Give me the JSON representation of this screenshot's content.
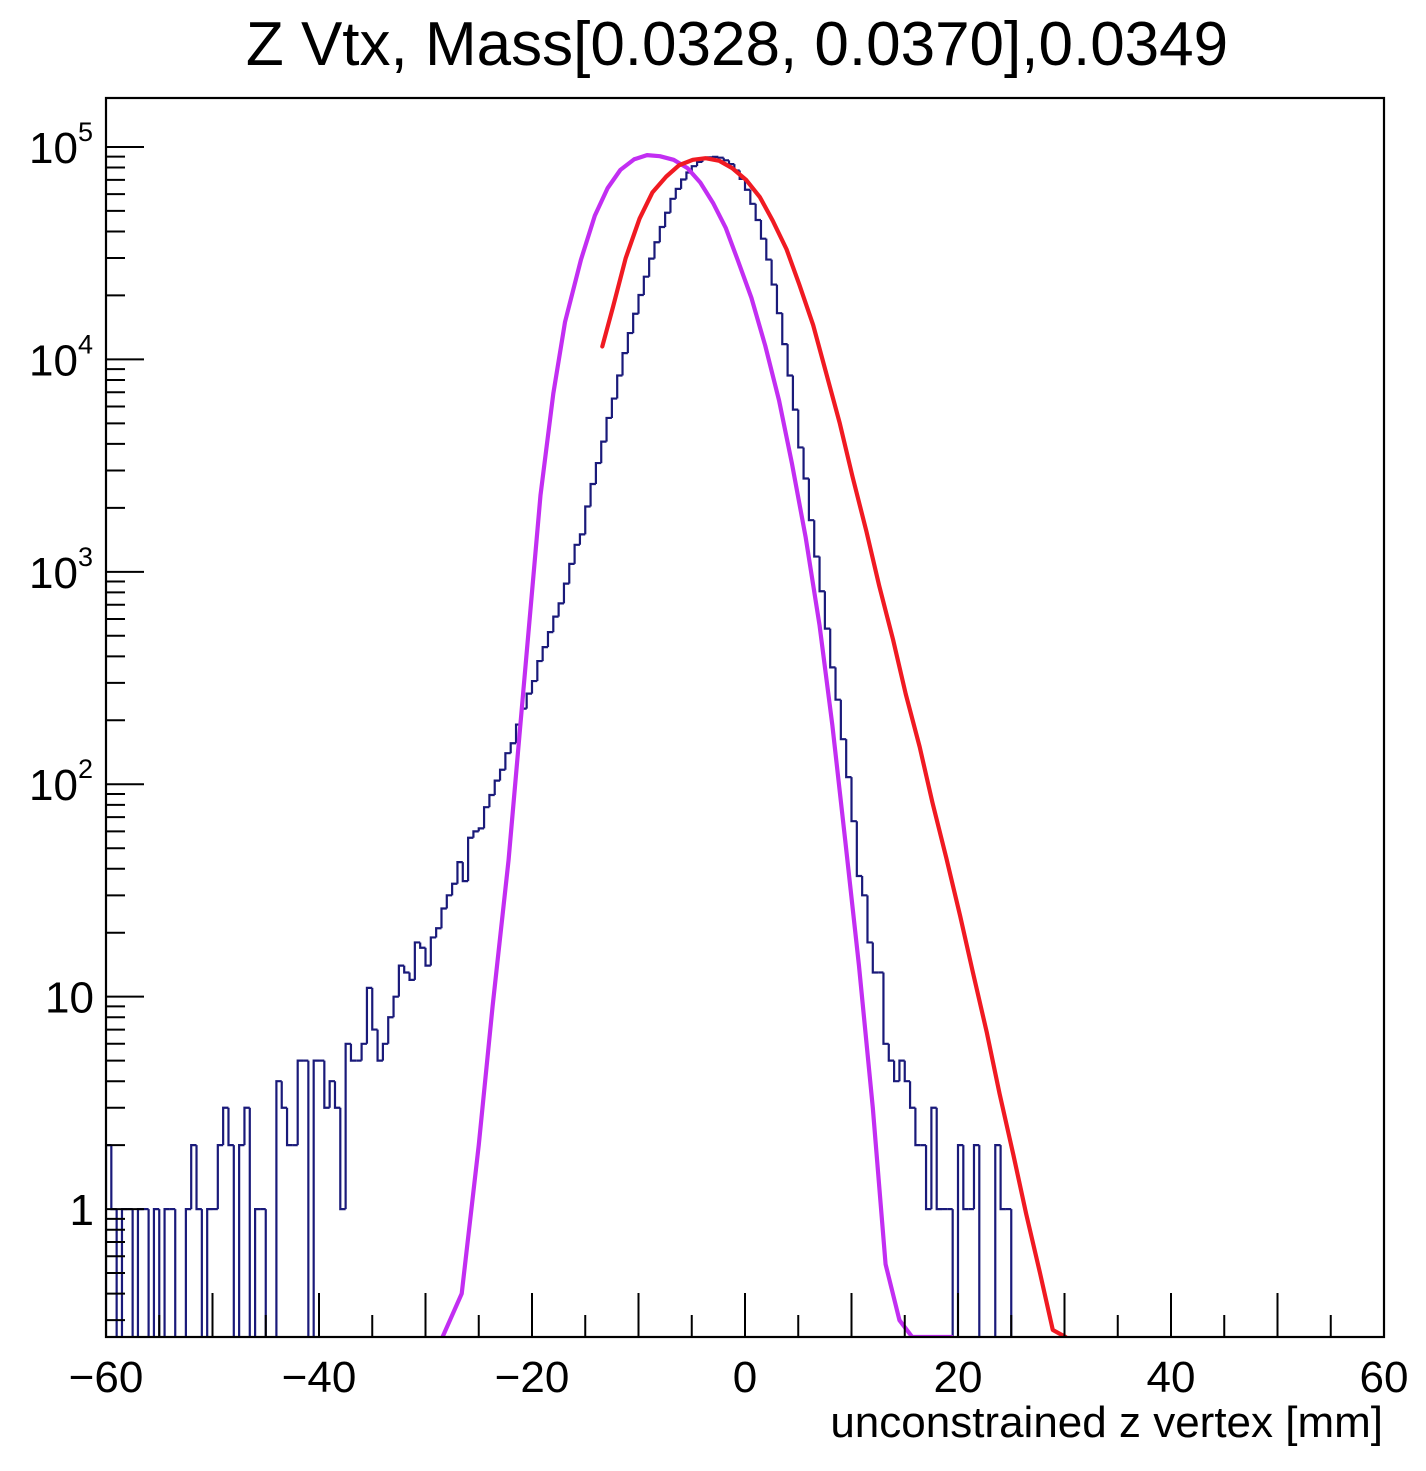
{
  "chart_data": {
    "type": "histogram",
    "title": "Z Vtx, Mass[0.0328, 0.0370],0.0349",
    "xlabel": "unconstrained z vertex [mm]",
    "ylabel": "",
    "xlim": [
      -60,
      60
    ],
    "ylim": [
      0.25,
      170000
    ],
    "yscale": "log",
    "grid": false,
    "legend": "none",
    "x_ticks": [
      {
        "value": -60,
        "label": "−60"
      },
      {
        "value": -40,
        "label": "−40"
      },
      {
        "value": -20,
        "label": "−20"
      },
      {
        "value": 0,
        "label": "0"
      },
      {
        "value": 20,
        "label": "20"
      },
      {
        "value": 40,
        "label": "40"
      },
      {
        "value": 60,
        "label": "60"
      }
    ],
    "y_ticks": [
      {
        "value": 1,
        "base": "1",
        "exp": ""
      },
      {
        "value": 10,
        "base": "10",
        "exp": ""
      },
      {
        "value": 100,
        "base": "10",
        "exp": "2"
      },
      {
        "value": 1000,
        "base": "10",
        "exp": "3"
      },
      {
        "value": 10000,
        "base": "10",
        "exp": "4"
      },
      {
        "value": 100000,
        "base": "10",
        "exp": "5"
      }
    ],
    "histogram": {
      "color": "#1a1a7a",
      "bin_edges_start": -60,
      "bin_width": 0.5,
      "counts": [
        2,
        1,
        0,
        1,
        1,
        0,
        1,
        1,
        0,
        1,
        0,
        1,
        1,
        0,
        0,
        1,
        2,
        1,
        0,
        1,
        1,
        2,
        3,
        2,
        0,
        2,
        3,
        0,
        1,
        1,
        0,
        0,
        4,
        3,
        2,
        2,
        5,
        5,
        0,
        5,
        5,
        3,
        4,
        3,
        1,
        6,
        5,
        5,
        6,
        11,
        7,
        5,
        6,
        8,
        10,
        14,
        13,
        12,
        18,
        17,
        14,
        19,
        21,
        26,
        30,
        34,
        43,
        35,
        56,
        60,
        62,
        78,
        89,
        104,
        117,
        140,
        156,
        191,
        227,
        267,
        306,
        380,
        442,
        520,
        615,
        710,
        880,
        1090,
        1340,
        1500,
        2030,
        2590,
        3250,
        4100,
        5300,
        6540,
        8400,
        10700,
        13300,
        16400,
        20100,
        24500,
        29800,
        35600,
        42000,
        49000,
        57000,
        63500,
        70300,
        75800,
        81200,
        85000,
        88000,
        89300,
        89800,
        89000,
        86500,
        83000,
        77500,
        70700,
        62900,
        54000,
        45300,
        37000,
        29500,
        22500,
        16500,
        11800,
        8400,
        5800,
        3850,
        2750,
        1750,
        1180,
        810,
        540,
        355,
        250,
        163,
        108,
        67,
        37,
        30,
        18,
        13,
        13,
        6,
        5,
        4,
        5,
        4,
        3,
        2,
        2,
        1,
        3,
        1,
        1,
        1,
        0,
        2,
        1,
        1,
        2,
        0,
        0,
        0,
        2,
        1,
        1,
        0,
        0,
        0,
        0,
        0,
        0,
        0,
        0,
        0,
        0,
        0,
        0,
        0,
        0,
        0,
        0,
        0,
        0,
        0,
        0,
        0,
        0,
        0,
        0,
        0,
        0,
        0,
        0,
        0,
        0,
        0,
        0,
        0,
        0,
        0,
        0,
        0,
        0,
        0,
        0,
        0,
        0,
        0,
        0,
        0,
        0,
        0,
        0,
        0,
        0,
        0,
        0,
        0
      ]
    },
    "series": [
      {
        "color": "#c22ef2",
        "x": [
          -28.4,
          -26.6,
          -25.0,
          -23.7,
          -22.2,
          -20.8,
          -19.2,
          -18.0,
          -16.9,
          -15.4,
          -14.1,
          -12.9,
          -11.7,
          -10.4,
          -9.2,
          -8.0,
          -6.7,
          -5.4,
          -4.2,
          -3.0,
          -1.8,
          -0.7,
          0.6,
          1.9,
          3.2,
          4.4,
          5.7,
          7.0,
          8.2,
          9.4,
          10.7,
          12.0,
          13.2,
          14.5,
          15.7,
          17.0,
          18.3,
          19.4
        ],
        "y": [
          0.25,
          0.4,
          2.0,
          9.0,
          44,
          280,
          2300,
          6900,
          15000,
          29500,
          47500,
          64000,
          78000,
          87500,
          91500,
          90500,
          87000,
          79500,
          68000,
          54500,
          41500,
          29500,
          19500,
          11600,
          6400,
          3250,
          1450,
          560,
          190,
          55,
          14,
          3.0,
          0.55,
          0.3,
          0.25,
          0.25,
          0.25,
          0.25
        ]
      },
      {
        "color": "#f01a22",
        "x": [
          -13.4,
          -12.4,
          -11.2,
          -9.9,
          -8.7,
          -7.4,
          -6.2,
          -4.9,
          -3.7,
          -2.4,
          -1.2,
          0.1,
          1.4,
          2.6,
          3.9,
          5.1,
          6.4,
          7.6,
          8.9,
          10.1,
          11.4,
          12.6,
          13.9,
          15.1,
          16.4,
          17.6,
          18.9,
          20.2,
          21.4,
          22.7,
          23.9,
          25.2,
          26.4,
          27.7,
          28.9,
          30.1
        ],
        "y": [
          11500,
          17600,
          30000,
          46000,
          61000,
          72500,
          82000,
          87000,
          88500,
          86000,
          79500,
          70000,
          58000,
          45000,
          33000,
          22500,
          14500,
          8700,
          5000,
          2800,
          1550,
          860,
          480,
          265,
          150,
          82,
          45,
          24,
          13,
          6.8,
          3.5,
          1.8,
          0.95,
          0.5,
          0.27,
          0.25
        ]
      }
    ]
  }
}
